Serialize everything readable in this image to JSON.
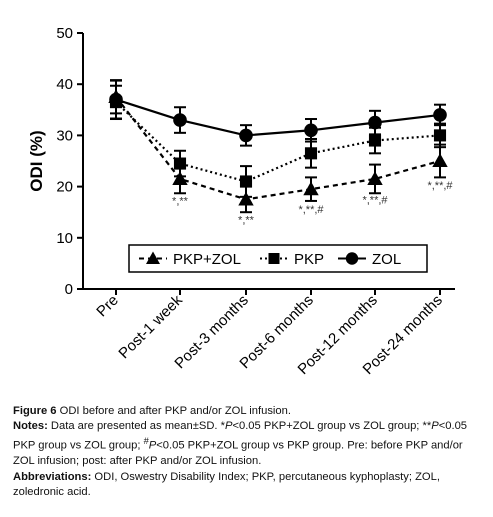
{
  "chart_data": {
    "type": "line",
    "ylabel": "ODI (%)",
    "xlabel": "",
    "ylim": [
      0,
      50
    ],
    "yticks": [
      0,
      10,
      20,
      30,
      40,
      50
    ],
    "categories": [
      "Pre",
      "Post-1 week",
      "Post-3 months",
      "Post-6 months",
      "Post-12 months",
      "Post-24 months"
    ],
    "legend_position": "bottom-center",
    "series": [
      {
        "name": "PKP+ZOL",
        "marker": "triangle",
        "line": "dashed",
        "values": [
          37.5,
          21.5,
          17.5,
          19.5,
          21.5,
          25.0
        ],
        "errors": [
          3.2,
          2.8,
          2.5,
          2.3,
          2.8,
          3.2
        ]
      },
      {
        "name": "PKP",
        "marker": "square",
        "line": "dotted",
        "values": [
          36.5,
          24.5,
          21.0,
          26.5,
          29.0,
          30.0
        ],
        "errors": [
          3.2,
          2.5,
          3.0,
          2.8,
          2.5,
          2.3
        ]
      },
      {
        "name": "ZOL",
        "marker": "circle",
        "line": "solid",
        "values": [
          37.0,
          33.0,
          30.0,
          31.0,
          32.5,
          34.0
        ],
        "errors": [
          3.8,
          2.5,
          2.0,
          2.2,
          2.3,
          2.0
        ]
      }
    ],
    "annotations": [
      {
        "category": "Post-1 week",
        "text": "*,**",
        "y": 16.5
      },
      {
        "category": "Post-3 months",
        "text": "*,**",
        "y": 12.8
      },
      {
        "category": "Post-6 months",
        "text": "*,**,#",
        "y": 14.8
      },
      {
        "category": "Post-12 months",
        "text": "*,**,#",
        "y": 16.7
      },
      {
        "category": "Post-24 months",
        "text": "*,**,#",
        "y": 19.5
      }
    ]
  },
  "caption": {
    "figure_label": "Figure 6",
    "figure_text": " ODI before and after PKP and/or ZOL infusion.",
    "notes_label": "Notes:",
    "notes_a": " Data are presented as mean±SD. *",
    "p1": "P",
    "notes_b": "<0.05 PKP+ZOL group vs ZOL group; **",
    "p2": "P",
    "notes_c": "<0.05 PKP group vs ZOL group; ",
    "hash": "#",
    "p3": "P",
    "notes_d": "<0.05 PKP+ZOL group vs PKP group. Pre: before PKP and/or ZOL infusion; post: after PKP and/or ZOL infusion.",
    "abbr_label": "Abbreviations:",
    "abbr_text": " ODI, Oswestry Disability Index; PKP, percutaneous kyphoplasty; ZOL, zoledronic acid."
  }
}
